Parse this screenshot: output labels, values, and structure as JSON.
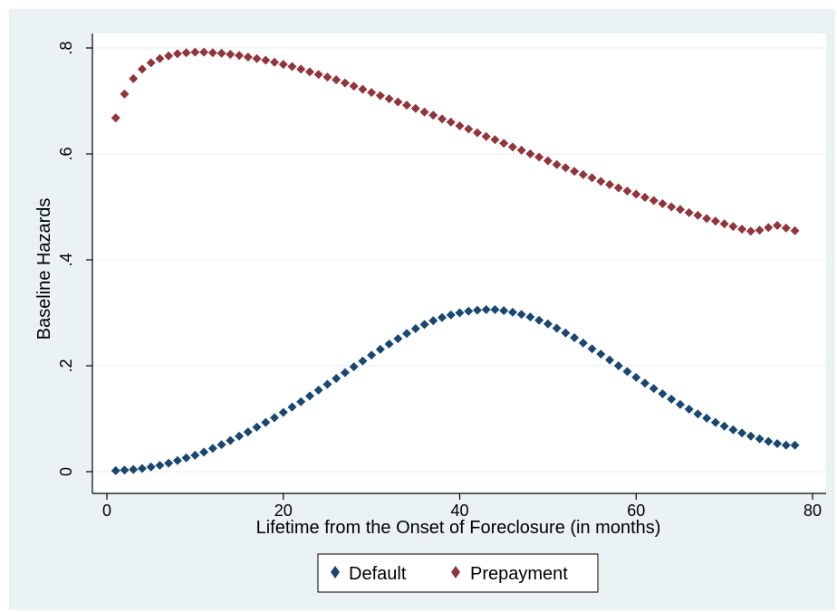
{
  "colors": {
    "outer_background": "#eaf2f3",
    "plot_background": "#ffffff",
    "gridline": "#eaf2f3",
    "axis": "#000000",
    "default_series": "#1a476f",
    "prepayment_series": "#90353b"
  },
  "chart_data": {
    "type": "scatter",
    "title": "",
    "xlabel": "Lifetime from the Onset of Foreclosure (in months)",
    "ylabel": "Baseline Hazards",
    "xlim": [
      0,
      80
    ],
    "ylim": [
      0,
      0.8
    ],
    "x_ticks": [
      0,
      20,
      40,
      60,
      80
    ],
    "x_tick_labels": [
      "0",
      "20",
      "40",
      "60",
      "80"
    ],
    "y_ticks": [
      0,
      0.2,
      0.4,
      0.6,
      0.8
    ],
    "y_tick_labels": [
      "0",
      ".2",
      ".4",
      ".6",
      ".8"
    ],
    "grid": true,
    "legend_position": "bottom",
    "marker": "diamond",
    "series": [
      {
        "name": "Default",
        "color": "#1a476f",
        "x": [
          1,
          2,
          3,
          4,
          5,
          6,
          7,
          8,
          9,
          10,
          11,
          12,
          13,
          14,
          15,
          16,
          17,
          18,
          19,
          20,
          21,
          22,
          23,
          24,
          25,
          26,
          27,
          28,
          29,
          30,
          31,
          32,
          33,
          34,
          35,
          36,
          37,
          38,
          39,
          40,
          41,
          42,
          43,
          44,
          45,
          46,
          47,
          48,
          49,
          50,
          51,
          52,
          53,
          54,
          55,
          56,
          57,
          58,
          59,
          60,
          61,
          62,
          63,
          64,
          65,
          66,
          67,
          68,
          69,
          70,
          71,
          72,
          73,
          74,
          75,
          76,
          77,
          78
        ],
        "y": [
          0.002,
          0.003,
          0.004,
          0.006,
          0.009,
          0.012,
          0.016,
          0.021,
          0.026,
          0.031,
          0.037,
          0.044,
          0.051,
          0.059,
          0.067,
          0.075,
          0.084,
          0.093,
          0.102,
          0.112,
          0.122,
          0.132,
          0.143,
          0.154,
          0.165,
          0.176,
          0.187,
          0.198,
          0.209,
          0.22,
          0.231,
          0.241,
          0.251,
          0.261,
          0.27,
          0.278,
          0.285,
          0.291,
          0.296,
          0.3,
          0.303,
          0.305,
          0.306,
          0.306,
          0.304,
          0.301,
          0.297,
          0.292,
          0.286,
          0.279,
          0.271,
          0.262,
          0.253,
          0.243,
          0.232,
          0.222,
          0.211,
          0.2,
          0.189,
          0.178,
          0.167,
          0.157,
          0.147,
          0.137,
          0.127,
          0.118,
          0.109,
          0.101,
          0.093,
          0.086,
          0.079,
          0.073,
          0.067,
          0.062,
          0.057,
          0.053,
          0.05,
          0.05
        ]
      },
      {
        "name": "Prepayment",
        "color": "#90353b",
        "x": [
          1,
          2,
          3,
          4,
          5,
          6,
          7,
          8,
          9,
          10,
          11,
          12,
          13,
          14,
          15,
          16,
          17,
          18,
          19,
          20,
          21,
          22,
          23,
          24,
          25,
          26,
          27,
          28,
          29,
          30,
          31,
          32,
          33,
          34,
          35,
          36,
          37,
          38,
          39,
          40,
          41,
          42,
          43,
          44,
          45,
          46,
          47,
          48,
          49,
          50,
          51,
          52,
          53,
          54,
          55,
          56,
          57,
          58,
          59,
          60,
          61,
          62,
          63,
          64,
          65,
          66,
          67,
          68,
          69,
          70,
          71,
          72,
          73,
          74,
          75,
          76,
          77,
          78
        ],
        "y": [
          0.668,
          0.713,
          0.742,
          0.76,
          0.772,
          0.78,
          0.785,
          0.789,
          0.791,
          0.792,
          0.792,
          0.791,
          0.79,
          0.788,
          0.786,
          0.783,
          0.78,
          0.777,
          0.773,
          0.769,
          0.765,
          0.76,
          0.755,
          0.75,
          0.745,
          0.74,
          0.734,
          0.728,
          0.722,
          0.716,
          0.71,
          0.704,
          0.698,
          0.692,
          0.686,
          0.679,
          0.673,
          0.666,
          0.66,
          0.653,
          0.647,
          0.64,
          0.633,
          0.627,
          0.62,
          0.613,
          0.607,
          0.6,
          0.594,
          0.587,
          0.58,
          0.574,
          0.567,
          0.561,
          0.555,
          0.548,
          0.542,
          0.536,
          0.53,
          0.524,
          0.518,
          0.512,
          0.506,
          0.5,
          0.495,
          0.489,
          0.484,
          0.478,
          0.473,
          0.468,
          0.463,
          0.458,
          0.454,
          0.456,
          0.461,
          0.465,
          0.46,
          0.455
        ]
      }
    ]
  }
}
